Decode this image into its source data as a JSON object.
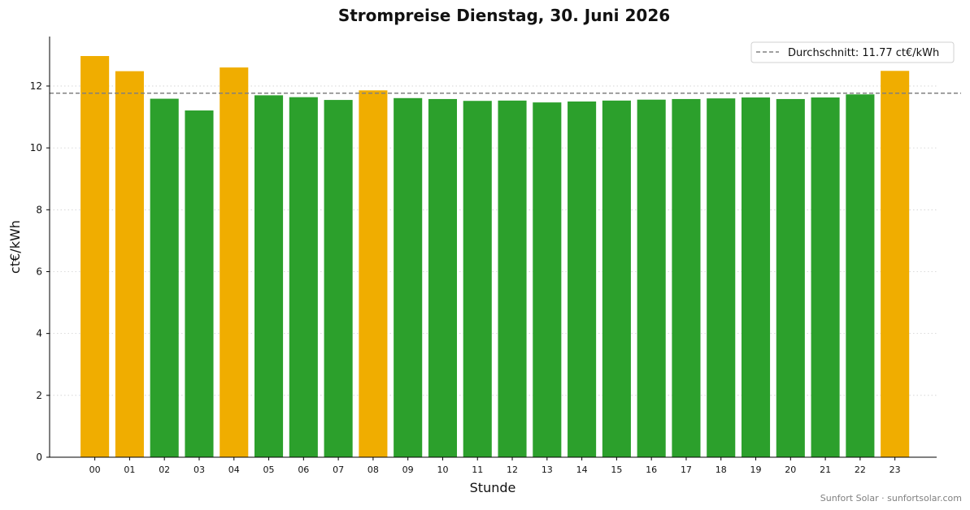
{
  "chart_data": {
    "type": "bar",
    "title": "Strompreise Dienstag, 30. Juni 2026",
    "xlabel": "Stunde",
    "ylabel": "ct€/kWh",
    "categories": [
      "00",
      "01",
      "02",
      "03",
      "04",
      "05",
      "06",
      "07",
      "08",
      "09",
      "10",
      "11",
      "12",
      "13",
      "14",
      "15",
      "16",
      "17",
      "18",
      "19",
      "20",
      "21",
      "22",
      "23"
    ],
    "values": [
      12.97,
      12.48,
      11.59,
      11.21,
      12.6,
      11.7,
      11.64,
      11.55,
      11.86,
      11.61,
      11.58,
      11.52,
      11.53,
      11.47,
      11.5,
      11.53,
      11.56,
      11.58,
      11.6,
      11.63,
      11.58,
      11.63,
      11.73,
      12.49
    ],
    "ylim": [
      0,
      13.6
    ],
    "yticks": [
      0,
      2,
      4,
      6,
      8,
      10,
      12
    ],
    "grid": "horizontal-dotted",
    "average": 11.77,
    "legend": {
      "label": "Durchschnitt: 11.77 ct€/kWh",
      "placement": "top-right"
    },
    "colors": {
      "above_average": "#f0ad00",
      "below_average": "#2ca02c",
      "average_line": "#808080"
    }
  },
  "credit": "Sunfort Solar · sunfortsolar.com"
}
